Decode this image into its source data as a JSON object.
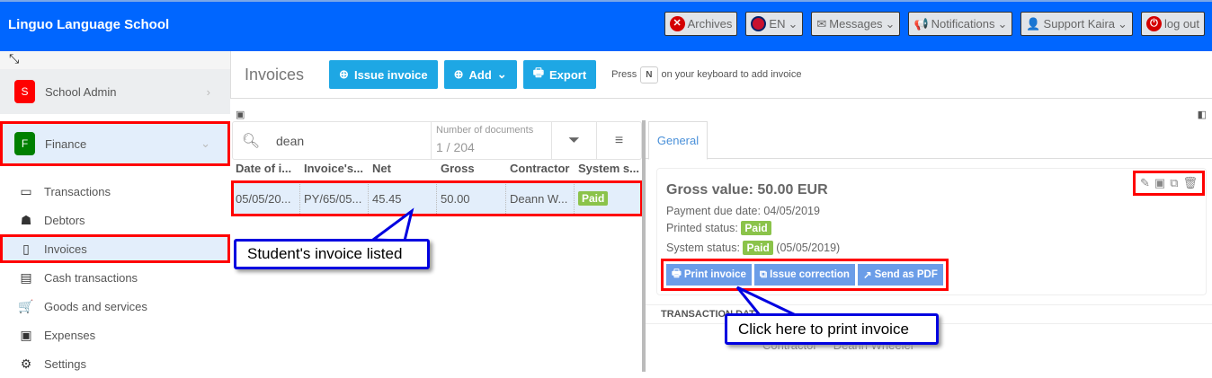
{
  "header": {
    "brand": "Linguo Language School",
    "buttons": [
      {
        "label": "Archives",
        "icon": "close-circle-icon"
      },
      {
        "label": "EN",
        "icon": "uk-flag-icon"
      },
      {
        "label": "Messages",
        "icon": "envelope-icon"
      },
      {
        "label": "Notifications",
        "icon": "megaphone-icon"
      },
      {
        "label": "Support Kaira",
        "icon": "user-icon"
      },
      {
        "label": "log out",
        "icon": "power-icon"
      }
    ]
  },
  "sidebar": {
    "modules": [
      {
        "badge": "S",
        "label": "School Admin",
        "color": "#ff0000"
      },
      {
        "badge": "F",
        "label": "Finance",
        "color": "#008000"
      }
    ],
    "items": [
      {
        "label": "Transactions",
        "icon": "credit-card-icon"
      },
      {
        "label": "Debtors",
        "icon": "spy-icon"
      },
      {
        "label": "Invoices",
        "icon": "clipboard-icon"
      },
      {
        "label": "Cash transactions",
        "icon": "calendar-icon"
      },
      {
        "label": "Goods and services",
        "icon": "cart-icon"
      },
      {
        "label": "Expenses",
        "icon": "wallet-icon"
      },
      {
        "label": "Settings",
        "icon": "gear-icon"
      }
    ]
  },
  "toolbar": {
    "title": "Invoices",
    "issue": "Issue invoice",
    "add": "Add",
    "export": "Export",
    "hint_pre": "Press",
    "hint_key": "N",
    "hint_post": "on your keyboard to add invoice"
  },
  "list": {
    "search": "dean",
    "docs_label": "Number of documents",
    "docs_count": "1 / 204",
    "columns": [
      "Date of i...",
      "Invoice's...",
      "Net",
      "Gross",
      "Contractor",
      "System s..."
    ],
    "rows": [
      {
        "date": "05/05/20...",
        "number": "PY/65/05...",
        "net": "45.45",
        "gross": "50.00",
        "contractor": "Deann W...",
        "status": "Paid"
      }
    ]
  },
  "detail": {
    "tab": "General",
    "gross": "Gross value: 50.00 EUR",
    "due": "Payment due date: 04/05/2019",
    "printed_label": "Printed status:",
    "printed": "Paid",
    "system_label": "System status:",
    "system": "Paid",
    "system_date": "(05/05/2019)",
    "print": "Print invoice",
    "correction": "Issue correction",
    "pdf": "Send as PDF",
    "transaction": "TRANSACTION DATA",
    "contractor_label": "Contractor",
    "contractor": "Deann Wheeler"
  },
  "callouts": {
    "listed": "Student's invoice listed",
    "print": "Click here to print invoice"
  },
  "colors": {
    "header": "#0066ff",
    "accent": "#1ea7e4",
    "paid": "#8bc34a",
    "highlight": "#ff0000"
  }
}
